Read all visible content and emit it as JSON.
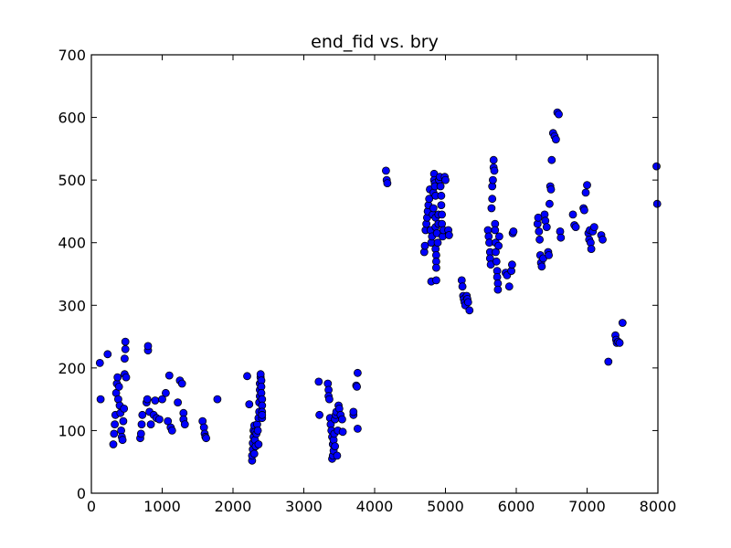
{
  "chart_data": {
    "type": "scatter",
    "title": "end_fid vs. bry",
    "xlabel": "",
    "ylabel": "",
    "xlim": [
      0,
      8000
    ],
    "ylim": [
      0,
      700
    ],
    "x_ticks": [
      0,
      1000,
      2000,
      3000,
      4000,
      5000,
      6000,
      7000,
      8000
    ],
    "y_ticks": [
      0,
      100,
      200,
      300,
      400,
      500,
      600,
      700
    ],
    "x_tick_labels": [
      "0",
      "1000",
      "2000",
      "3000",
      "4000",
      "5000",
      "6000",
      "7000",
      "8000"
    ],
    "y_tick_labels": [
      "0",
      "100",
      "200",
      "300",
      "400",
      "500",
      "600",
      "700"
    ],
    "grid": false,
    "legend": "none",
    "marker_color": "#0000ff",
    "marker_edge_color": "#000000",
    "points": [
      [
        120,
        208
      ],
      [
        130,
        150
      ],
      [
        230,
        222
      ],
      [
        310,
        78
      ],
      [
        320,
        95
      ],
      [
        330,
        110
      ],
      [
        340,
        125
      ],
      [
        350,
        160
      ],
      [
        360,
        175
      ],
      [
        370,
        185
      ],
      [
        380,
        150
      ],
      [
        390,
        170
      ],
      [
        400,
        140
      ],
      [
        410,
        128
      ],
      [
        420,
        100
      ],
      [
        430,
        90
      ],
      [
        440,
        85
      ],
      [
        450,
        115
      ],
      [
        460,
        135
      ],
      [
        470,
        190
      ],
      [
        470,
        215
      ],
      [
        480,
        230
      ],
      [
        480,
        242
      ],
      [
        490,
        185
      ],
      [
        690,
        88
      ],
      [
        700,
        95
      ],
      [
        710,
        110
      ],
      [
        720,
        125
      ],
      [
        780,
        145
      ],
      [
        790,
        150
      ],
      [
        800,
        228
      ],
      [
        800,
        235
      ],
      [
        820,
        130
      ],
      [
        840,
        110
      ],
      [
        880,
        125
      ],
      [
        900,
        148
      ],
      [
        920,
        120
      ],
      [
        960,
        118
      ],
      [
        1000,
        150
      ],
      [
        1050,
        160
      ],
      [
        1080,
        115
      ],
      [
        1100,
        188
      ],
      [
        1120,
        105
      ],
      [
        1140,
        100
      ],
      [
        1220,
        145
      ],
      [
        1250,
        180
      ],
      [
        1280,
        175
      ],
      [
        1300,
        128
      ],
      [
        1300,
        118
      ],
      [
        1320,
        110
      ],
      [
        1570,
        115
      ],
      [
        1590,
        105
      ],
      [
        1600,
        95
      ],
      [
        1610,
        90
      ],
      [
        1620,
        88
      ],
      [
        1780,
        150
      ],
      [
        2200,
        187
      ],
      [
        2230,
        142
      ],
      [
        2270,
        52
      ],
      [
        2270,
        60
      ],
      [
        2280,
        70
      ],
      [
        2280,
        80
      ],
      [
        2290,
        90
      ],
      [
        2290,
        100
      ],
      [
        2300,
        108
      ],
      [
        2300,
        63
      ],
      [
        2310,
        85
      ],
      [
        2310,
        98
      ],
      [
        2320,
        75
      ],
      [
        2330,
        95
      ],
      [
        2340,
        110
      ],
      [
        2350,
        100
      ],
      [
        2360,
        78
      ],
      [
        2360,
        120
      ],
      [
        2370,
        130
      ],
      [
        2370,
        145
      ],
      [
        2380,
        155
      ],
      [
        2380,
        165
      ],
      [
        2380,
        175
      ],
      [
        2390,
        185
      ],
      [
        2390,
        190
      ],
      [
        2400,
        180
      ],
      [
        2400,
        170
      ],
      [
        2400,
        160
      ],
      [
        2410,
        150
      ],
      [
        2410,
        140
      ],
      [
        2410,
        130
      ],
      [
        2410,
        120
      ],
      [
        2410,
        125
      ],
      [
        3210,
        178
      ],
      [
        3220,
        125
      ],
      [
        3340,
        175
      ],
      [
        3350,
        165
      ],
      [
        3350,
        155
      ],
      [
        3360,
        150
      ],
      [
        3370,
        120
      ],
      [
        3380,
        110
      ],
      [
        3390,
        100
      ],
      [
        3400,
        90
      ],
      [
        3400,
        55
      ],
      [
        3410,
        60
      ],
      [
        3410,
        78
      ],
      [
        3420,
        68
      ],
      [
        3420,
        85
      ],
      [
        3430,
        95
      ],
      [
        3440,
        75
      ],
      [
        3440,
        118
      ],
      [
        3450,
        125
      ],
      [
        3460,
        130
      ],
      [
        3470,
        60
      ],
      [
        3480,
        100
      ],
      [
        3490,
        140
      ],
      [
        3500,
        135
      ],
      [
        3520,
        125
      ],
      [
        3540,
        118
      ],
      [
        3550,
        98
      ],
      [
        3700,
        125
      ],
      [
        3700,
        130
      ],
      [
        3740,
        172
      ],
      [
        3750,
        170
      ],
      [
        3760,
        192
      ],
      [
        3760,
        103
      ],
      [
        4160,
        515
      ],
      [
        4170,
        500
      ],
      [
        4180,
        495
      ],
      [
        4700,
        385
      ],
      [
        4710,
        395
      ],
      [
        4720,
        420
      ],
      [
        4730,
        430
      ],
      [
        4740,
        440
      ],
      [
        4750,
        450
      ],
      [
        4760,
        460
      ],
      [
        4770,
        470
      ],
      [
        4780,
        485
      ],
      [
        4790,
        420
      ],
      [
        4800,
        400
      ],
      [
        4800,
        338
      ],
      [
        4810,
        410
      ],
      [
        4820,
        445
      ],
      [
        4830,
        455
      ],
      [
        4830,
        480
      ],
      [
        4840,
        510
      ],
      [
        4840,
        500
      ],
      [
        4850,
        495
      ],
      [
        4850,
        490
      ],
      [
        4860,
        475
      ],
      [
        4860,
        440
      ],
      [
        4860,
        425
      ],
      [
        4860,
        390
      ],
      [
        4870,
        380
      ],
      [
        4870,
        370
      ],
      [
        4870,
        360
      ],
      [
        4870,
        340
      ],
      [
        4880,
        415
      ],
      [
        4890,
        400
      ],
      [
        4900,
        430
      ],
      [
        4900,
        445
      ],
      [
        4910,
        500
      ],
      [
        4920,
        505
      ],
      [
        4930,
        490
      ],
      [
        4940,
        475
      ],
      [
        4940,
        460
      ],
      [
        4950,
        445
      ],
      [
        4950,
        430
      ],
      [
        4960,
        410
      ],
      [
        4970,
        420
      ],
      [
        4990,
        505
      ],
      [
        5000,
        500
      ],
      [
        5040,
        420
      ],
      [
        5050,
        412
      ],
      [
        5230,
        340
      ],
      [
        5240,
        330
      ],
      [
        5250,
        315
      ],
      [
        5260,
        310
      ],
      [
        5270,
        305
      ],
      [
        5280,
        300
      ],
      [
        5300,
        315
      ],
      [
        5310,
        310
      ],
      [
        5320,
        305
      ],
      [
        5340,
        292
      ],
      [
        5600,
        420
      ],
      [
        5610,
        410
      ],
      [
        5620,
        400
      ],
      [
        5630,
        385
      ],
      [
        5630,
        375
      ],
      [
        5640,
        365
      ],
      [
        5650,
        455
      ],
      [
        5660,
        470
      ],
      [
        5660,
        490
      ],
      [
        5670,
        500
      ],
      [
        5680,
        520
      ],
      [
        5680,
        532
      ],
      [
        5690,
        515
      ],
      [
        5700,
        430
      ],
      [
        5700,
        420
      ],
      [
        5710,
        400
      ],
      [
        5710,
        385
      ],
      [
        5720,
        370
      ],
      [
        5730,
        355
      ],
      [
        5730,
        345
      ],
      [
        5740,
        335
      ],
      [
        5740,
        325
      ],
      [
        5750,
        395
      ],
      [
        5760,
        410
      ],
      [
        5850,
        352
      ],
      [
        5870,
        348
      ],
      [
        5900,
        330
      ],
      [
        5930,
        355
      ],
      [
        5940,
        365
      ],
      [
        5950,
        415
      ],
      [
        5960,
        418
      ],
      [
        6300,
        430
      ],
      [
        6310,
        440
      ],
      [
        6320,
        418
      ],
      [
        6330,
        405
      ],
      [
        6340,
        380
      ],
      [
        6350,
        368
      ],
      [
        6360,
        362
      ],
      [
        6380,
        375
      ],
      [
        6400,
        445
      ],
      [
        6410,
        435
      ],
      [
        6430,
        425
      ],
      [
        6450,
        385
      ],
      [
        6460,
        380
      ],
      [
        6470,
        462
      ],
      [
        6480,
        490
      ],
      [
        6490,
        485
      ],
      [
        6500,
        532
      ],
      [
        6520,
        575
      ],
      [
        6540,
        570
      ],
      [
        6560,
        565
      ],
      [
        6580,
        608
      ],
      [
        6600,
        605
      ],
      [
        6620,
        418
      ],
      [
        6630,
        408
      ],
      [
        6800,
        445
      ],
      [
        6820,
        428
      ],
      [
        6840,
        425
      ],
      [
        6950,
        455
      ],
      [
        6960,
        452
      ],
      [
        6980,
        480
      ],
      [
        7000,
        492
      ],
      [
        7020,
        415
      ],
      [
        7030,
        405
      ],
      [
        7040,
        420
      ],
      [
        7050,
        400
      ],
      [
        7060,
        390
      ],
      [
        7080,
        418
      ],
      [
        7100,
        425
      ],
      [
        7200,
        412
      ],
      [
        7220,
        405
      ],
      [
        7300,
        210
      ],
      [
        7400,
        252
      ],
      [
        7410,
        245
      ],
      [
        7420,
        240
      ],
      [
        7440,
        242
      ],
      [
        7460,
        240
      ],
      [
        7500,
        272
      ],
      [
        7980,
        522
      ],
      [
        7990,
        462
      ]
    ]
  }
}
